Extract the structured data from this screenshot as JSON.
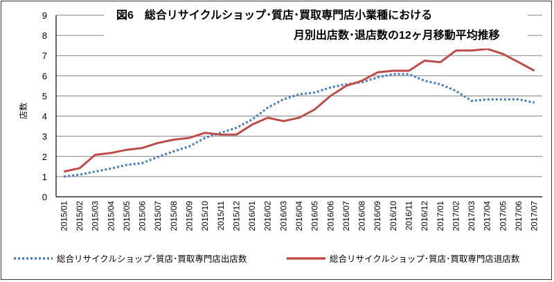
{
  "chart_data": {
    "type": "line",
    "title_line1": "図6　総合リサイクルショップ･質店･買取専門店小業種における",
    "title_line2": "月別出店数･退店数の12ヶ月移動平均推移",
    "ylabel": "店数",
    "xlabel": "",
    "ylim": [
      0,
      9
    ],
    "yticks": [
      0,
      1,
      2,
      3,
      4,
      5,
      6,
      7,
      8,
      9
    ],
    "grid": true,
    "legend_position": "bottom",
    "categories": [
      "2015/01",
      "2015/02",
      "2015/03",
      "2015/04",
      "2015/05",
      "2015/06",
      "2015/07",
      "2015/08",
      "2015/09",
      "2015/10",
      "2015/11",
      "2015/12",
      "2016/01",
      "2016/02",
      "2016/03",
      "2016/04",
      "2016/05",
      "2016/06",
      "2016/07",
      "2016/08",
      "2016/09",
      "2016/10",
      "2016/11",
      "2016/12",
      "2017/01",
      "2017/02",
      "2017/03",
      "2017/04",
      "2017/05",
      "2017/06",
      "2017/07"
    ],
    "series": [
      {
        "name": "総合リサイクルショップ･質店･買取専門店出店数",
        "color": "#4a7ebb",
        "style": "dotted",
        "values": [
          1.0,
          1.1,
          1.25,
          1.4,
          1.58,
          1.67,
          1.98,
          2.25,
          2.5,
          2.92,
          3.17,
          3.42,
          3.83,
          4.42,
          4.83,
          5.08,
          5.17,
          5.42,
          5.58,
          5.67,
          5.92,
          6.08,
          6.08,
          5.75,
          5.58,
          5.25,
          4.75,
          4.83,
          4.83,
          4.83,
          4.67
        ]
      },
      {
        "name": "総合リサイクルショップ･質店･買取専門店退店数",
        "color": "#be4b48",
        "style": "solid",
        "values": [
          1.25,
          1.42,
          2.08,
          2.17,
          2.33,
          2.42,
          2.67,
          2.83,
          2.92,
          3.17,
          3.08,
          3.08,
          3.58,
          3.92,
          3.75,
          3.92,
          4.33,
          5.0,
          5.5,
          5.75,
          6.17,
          6.25,
          6.25,
          6.75,
          6.67,
          7.25,
          7.25,
          7.33,
          7.08,
          6.67,
          6.25
        ]
      }
    ]
  }
}
